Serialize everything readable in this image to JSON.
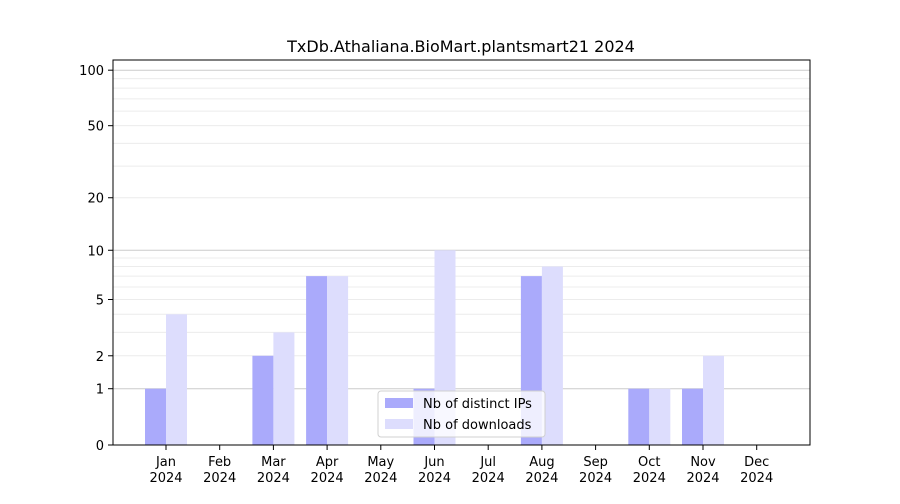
{
  "chart_data": {
    "type": "bar",
    "title": "TxDb.Athaliana.BioMart.plantsmart21 2024",
    "xlabel": "",
    "ylabel": "",
    "yscale": "log10(1+y)",
    "ylim": [
      0,
      120
    ],
    "yticks": [
      0,
      1,
      2,
      5,
      10,
      20,
      50,
      100
    ],
    "grid": true,
    "legend_position": "bottom-center",
    "categories": [
      "Jan\n2024",
      "Feb\n2024",
      "Mar\n2024",
      "Apr\n2024",
      "May\n2024",
      "Jun\n2024",
      "Jul\n2024",
      "Aug\n2024",
      "Sep\n2024",
      "Oct\n2024",
      "Nov\n2024",
      "Dec\n2024"
    ],
    "series": [
      {
        "name": "Nb of distinct IPs",
        "color": "#aaaafb",
        "values": [
          1,
          0,
          2,
          7,
          0,
          1,
          0,
          7,
          0,
          1,
          1,
          0
        ]
      },
      {
        "name": "Nb of downloads",
        "color": "#ddddfd",
        "values": [
          4,
          0,
          3,
          7,
          0,
          10,
          0,
          8,
          0,
          1,
          2,
          0
        ]
      }
    ]
  }
}
